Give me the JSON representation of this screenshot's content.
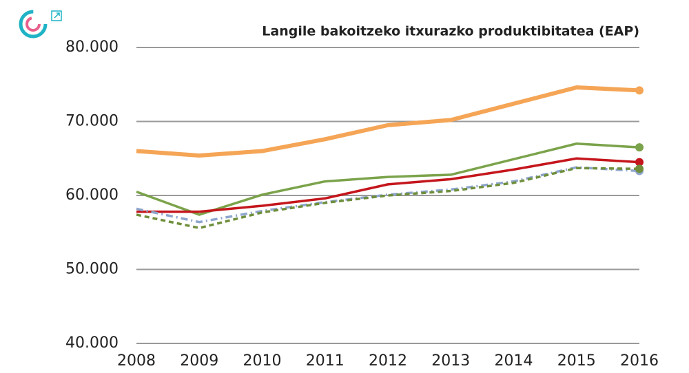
{
  "chart_data": {
    "type": "line",
    "title": "Langile bakoitzeko itxurazko produktibitatea (EAP)",
    "categories": [
      "2008",
      "2009",
      "2010",
      "2011",
      "2012",
      "2013",
      "2014",
      "2015",
      "2016"
    ],
    "series": [
      {
        "color": "#f5a556",
        "dash": "solid",
        "values": [
          66000,
          65400,
          66000,
          67600,
          69500,
          70200,
          72400,
          74600,
          74200
        ]
      },
      {
        "color": "#7ba34b",
        "dash": "solid",
        "values": [
          60500,
          57400,
          60100,
          61900,
          62500,
          62800,
          64900,
          67000,
          66500
        ]
      },
      {
        "color": "#c4161c",
        "dash": "solid",
        "values": [
          57800,
          57800,
          58600,
          59600,
          61500,
          62200,
          63500,
          65000,
          64500
        ]
      },
      {
        "color": "#8ea6cd",
        "dash": "dash-dot",
        "values": [
          58200,
          56400,
          57900,
          59100,
          60100,
          60800,
          61900,
          63800,
          63300
        ]
      },
      {
        "color": "#6f8f3c",
        "dash": "dash",
        "values": [
          57400,
          55600,
          57700,
          59000,
          60000,
          60600,
          61700,
          63700,
          63600
        ]
      }
    ],
    "ylim": [
      40000,
      80000
    ],
    "yticks": [
      {
        "value": 40000,
        "label": "40.000"
      },
      {
        "value": 50000,
        "label": "50.000"
      },
      {
        "value": 60000,
        "label": "60.000"
      },
      {
        "value": 70000,
        "label": "70.000"
      },
      {
        "value": 80000,
        "label": "80.000"
      }
    ],
    "grid": true,
    "end_markers": true
  }
}
